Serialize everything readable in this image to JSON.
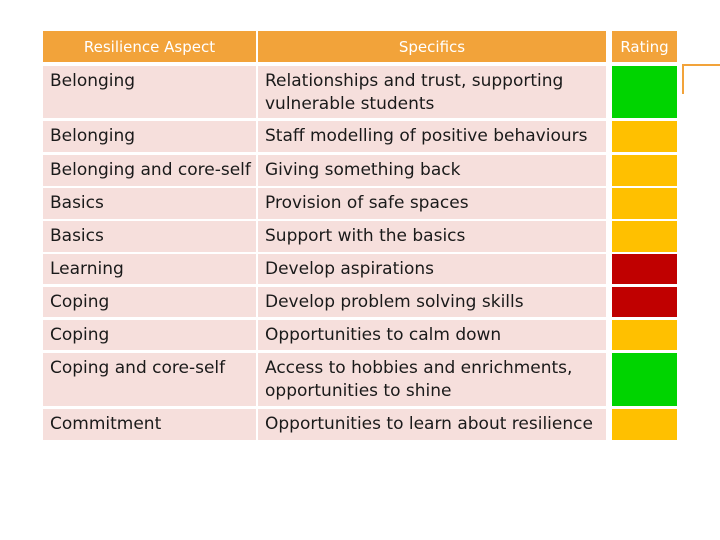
{
  "header": {
    "aspect": "Resilience Aspect",
    "specifics": "Specifics",
    "rating": "Rating"
  },
  "colors": {
    "header_bg": "#f2a33a",
    "row_bg": "#f6dfdc",
    "green": "#00d400",
    "amber": "#ffc000",
    "red": "#c00000"
  },
  "rows": [
    {
      "aspect": "Belonging",
      "specifics": "Relationships and trust, supporting vulnerable students",
      "rating": "green"
    },
    {
      "aspect": "Belonging",
      "specifics": "Staff modelling of positive behaviours",
      "rating": "amber"
    },
    {
      "aspect": "Belonging and core-self",
      "specifics": "Giving something back",
      "rating": "amber"
    },
    {
      "aspect": "Basics",
      "specifics": "Provision of safe spaces",
      "rating": "amber"
    },
    {
      "aspect": "Basics",
      "specifics": "Support with the basics",
      "rating": "amber"
    },
    {
      "aspect": "Learning",
      "specifics": "Develop aspirations",
      "rating": "red"
    },
    {
      "aspect": "Coping",
      "specifics": "Develop problem solving skills",
      "rating": "red"
    },
    {
      "aspect": "Coping",
      "specifics": "Opportunities to calm down",
      "rating": "amber"
    },
    {
      "aspect": "Coping and core-self",
      "specifics": "Access to hobbies and enrichments, opportunities to shine",
      "rating": "green"
    },
    {
      "aspect": "Commitment",
      "specifics": "Opportunities to learn about resilience",
      "rating": "amber"
    }
  ]
}
